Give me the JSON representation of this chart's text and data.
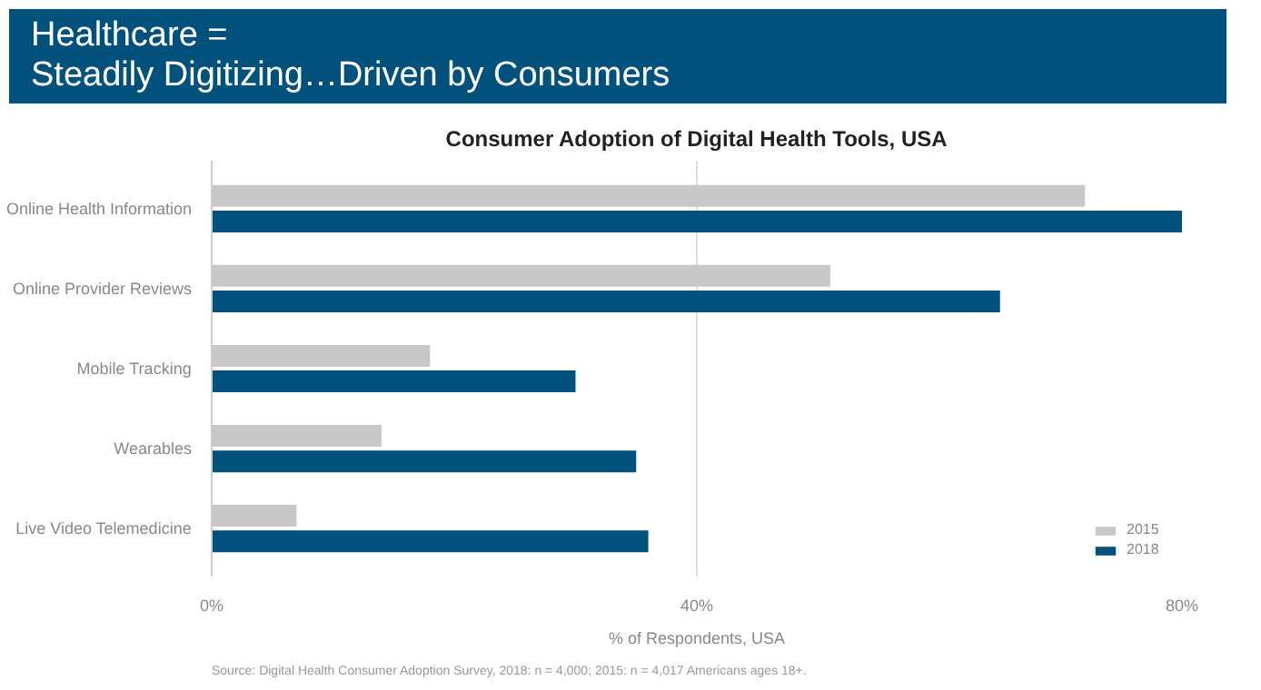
{
  "chart_data": {
    "type": "bar",
    "orientation": "horizontal",
    "title": "Healthcare =\nSteadily Digitizing…Driven by Consumers",
    "subtitle": "Consumer Adoption of Digital Health Tools, USA",
    "xlabel": "% of Respondents, USA",
    "categories": [
      "Online Health Information",
      "Online Provider Reviews",
      "Mobile Tracking",
      "Wearables",
      "Live Video Telemedicine"
    ],
    "series": [
      {
        "name": "2015",
        "color": "#c8c8c8",
        "values": [
          72,
          51,
          18,
          14,
          7
        ]
      },
      {
        "name": "2018",
        "color": "#00527c",
        "values": [
          80,
          65,
          30,
          35,
          36
        ]
      }
    ],
    "xlim": [
      0,
      80
    ],
    "xticks": [
      {
        "value": 0,
        "label": "0%"
      },
      {
        "value": 40,
        "label": "40%"
      },
      {
        "value": 80,
        "label": "80%"
      }
    ],
    "grid": "x",
    "legend": "bottom right",
    "annotations": [
      "Source: Digital Health Consumer Adoption Survey, 2018: n = 4,000; 2015: n = 4,017 Americans ages 18+."
    ]
  }
}
